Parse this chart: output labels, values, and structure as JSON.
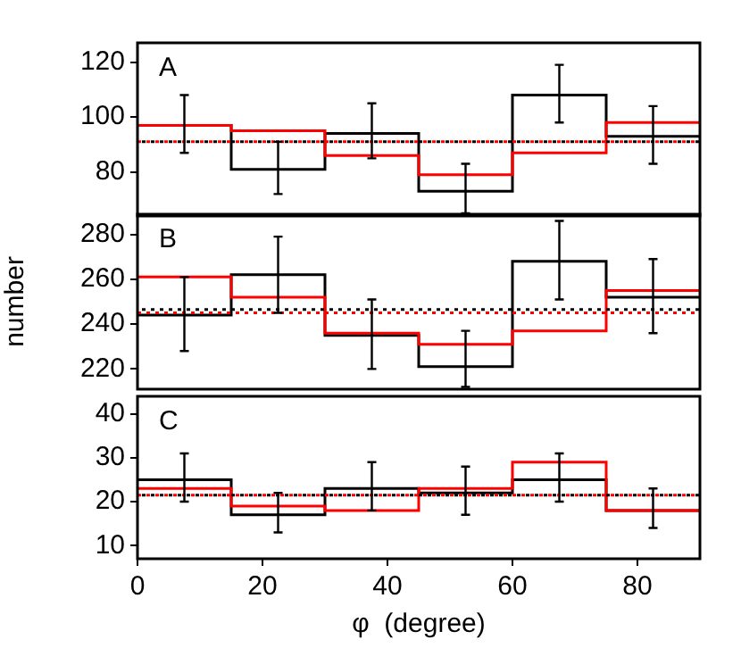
{
  "chart_data": [
    {
      "type": "step",
      "annotations": [
        "A"
      ],
      "x": [
        0,
        7.5,
        22.5,
        37.5,
        52.5,
        67.5,
        82.5,
        90
      ],
      "xlim": [
        0,
        90
      ],
      "xticks": [
        0,
        20,
        40,
        60,
        80
      ],
      "ylim": [
        64,
        127
      ],
      "yticks": [
        80,
        100,
        120
      ],
      "tick_labels": "y",
      "grid": false,
      "series": [
        {
          "color": "#ff0000",
          "values": [
            97,
            97,
            95,
            86,
            79,
            87,
            98,
            98
          ]
        },
        {
          "color": "#000000",
          "values": [
            97,
            97,
            81,
            94,
            73,
            108,
            93,
            93
          ],
          "errors": [
            null,
            [
              87,
              108
            ],
            [
              72,
              91
            ],
            [
              85,
              105
            ],
            [
              65,
              83
            ],
            [
              98,
              119
            ],
            [
              83,
              104
            ],
            null
          ]
        }
      ],
      "ref_lines": [
        {
          "axis": "y",
          "value": 91,
          "color": "#ff0000",
          "line_style": "dotted"
        },
        {
          "axis": "y",
          "value": 91,
          "color": "#000000",
          "line_style": "dotted"
        }
      ]
    },
    {
      "type": "step",
      "annotations": [
        "B"
      ],
      "ylabel": "number",
      "x": [
        0,
        7.5,
        22.5,
        37.5,
        52.5,
        67.5,
        82.5,
        90
      ],
      "xlim": [
        0,
        90
      ],
      "xticks": [
        0,
        20,
        40,
        60,
        80
      ],
      "ylim": [
        211,
        289
      ],
      "yticks": [
        220,
        240,
        260,
        280
      ],
      "tick_labels": "y",
      "grid": false,
      "series": [
        {
          "color": "#ff0000",
          "values": [
            261,
            261,
            252,
            236,
            231,
            237,
            255,
            255
          ]
        },
        {
          "color": "#000000",
          "values": [
            244,
            244,
            262,
            235,
            221,
            268,
            252,
            252
          ],
          "errors": [
            null,
            [
              228,
              261
            ],
            [
              245,
              279
            ],
            [
              220,
              251
            ],
            [
              212,
              237
            ],
            [
              251,
              286
            ],
            [
              236,
              269
            ],
            null
          ]
        }
      ],
      "ref_lines": [
        {
          "axis": "y",
          "value": 245,
          "color": "#ff0000",
          "line_style": "dotted"
        },
        {
          "axis": "y",
          "value": 246.5,
          "color": "#000000",
          "line_style": "dotted"
        }
      ]
    },
    {
      "type": "step",
      "annotations": [
        "C"
      ],
      "xlabel": "φ  (degree)",
      "x": [
        0,
        7.5,
        22.5,
        37.5,
        52.5,
        67.5,
        82.5,
        90
      ],
      "xlim": [
        0,
        90
      ],
      "xticks": [
        0,
        20,
        40,
        60,
        80
      ],
      "ylim": [
        7,
        44
      ],
      "yticks": [
        10,
        20,
        30,
        40
      ],
      "grid": false,
      "series": [
        {
          "color": "#ff0000",
          "values": [
            23,
            23,
            19,
            18,
            23,
            29,
            18,
            18
          ]
        },
        {
          "color": "#000000",
          "values": [
            25,
            25,
            17,
            23,
            22,
            25,
            18,
            18
          ],
          "errors": [
            null,
            [
              20,
              31
            ],
            [
              13,
              22
            ],
            [
              18,
              29
            ],
            [
              17,
              28
            ],
            [
              20,
              31
            ],
            [
              14,
              23
            ],
            null
          ]
        }
      ],
      "ref_lines": [
        {
          "axis": "y",
          "value": 21.5,
          "color": "#ff0000",
          "line_style": "dotted"
        },
        {
          "axis": "y",
          "value": 21.5,
          "color": "#000000",
          "line_style": "dotted"
        }
      ]
    }
  ]
}
